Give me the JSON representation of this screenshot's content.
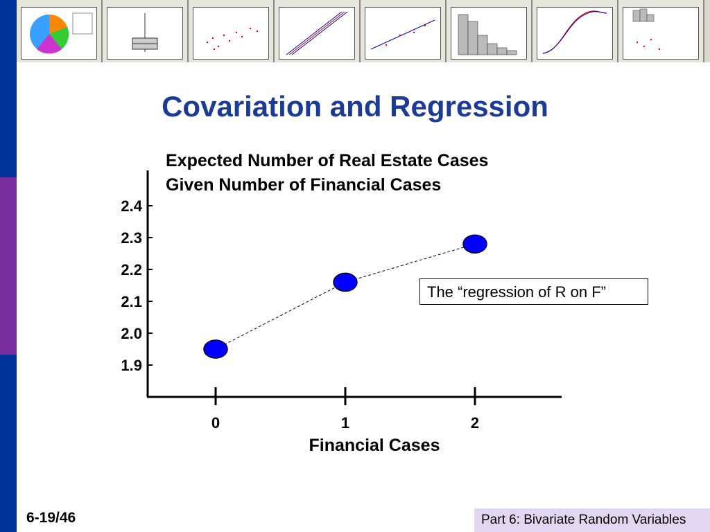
{
  "slide": {
    "title": "Covariation and Regression",
    "number": "6-19/46",
    "footer": "Part 6: Bivariate Random Variables"
  },
  "annotation": "The “regression of R on F”",
  "thumbnails": [
    "pie-chart-thumbnail",
    "boxplot-thumbnail",
    "scatterplot-thumbnail",
    "probability-plot-thumbnail",
    "regression-equation-thumbnail",
    "histogram-thumbnail",
    "empirical-cdf-thumbnail",
    "marginal-plot-thumbnail"
  ],
  "colors": {
    "title": "#1c3b96",
    "sidebar_blue": "#003399",
    "sidebar_purple": "#7a2fa0",
    "point_fill": "#0000ff",
    "footer_bg": "#e3d6f0"
  },
  "chart_data": {
    "type": "scatter",
    "title_lines": [
      "Expected Number of Real Estate Cases",
      "Given Number of Financial Cases"
    ],
    "xlabel": "Financial Cases",
    "ylabel": "",
    "x": [
      0,
      1,
      2
    ],
    "y": [
      1.95,
      2.16,
      2.28
    ],
    "connected": "dashed",
    "xticks": [
      "0",
      "1",
      "2"
    ],
    "yticks": [
      "2.4",
      "2.3",
      "2.2",
      "2.1",
      "2.0",
      "1.9"
    ],
    "ylim": [
      1.9,
      2.4
    ],
    "grid": false
  }
}
